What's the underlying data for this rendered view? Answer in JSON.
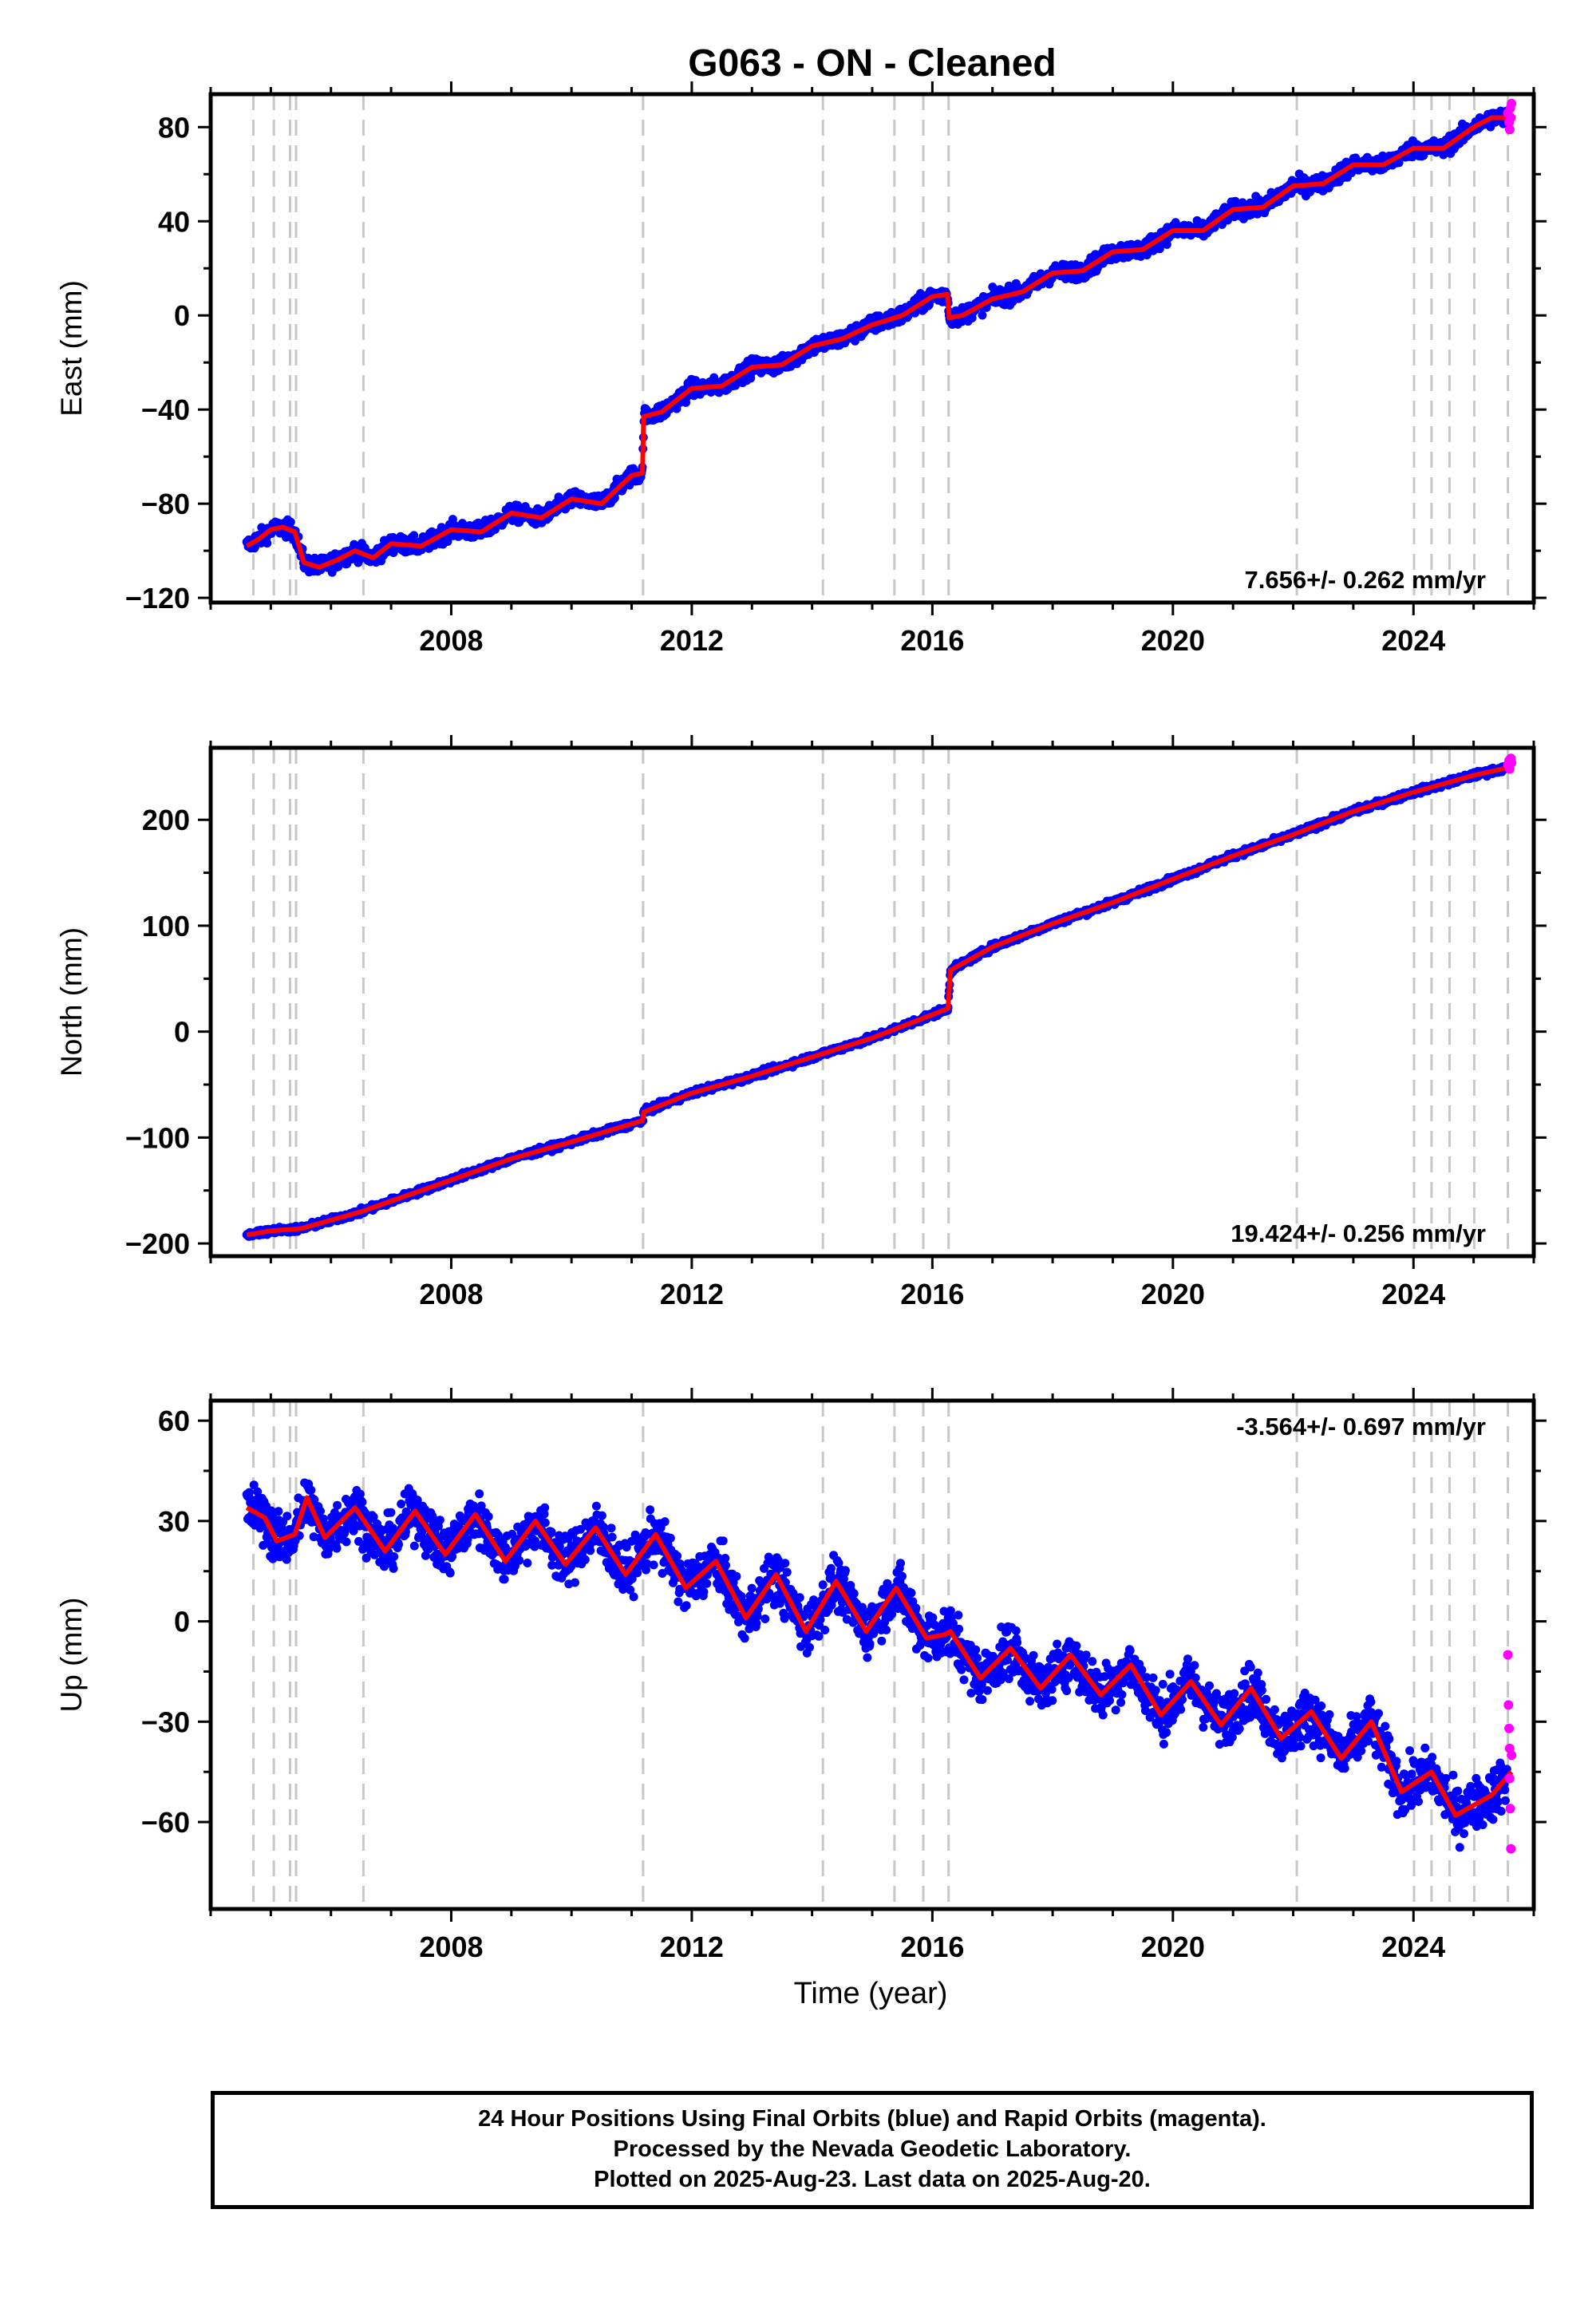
{
  "title": "G063  - ON - Cleaned",
  "colors": {
    "final": "#0000ff",
    "rapid": "#ff00ff",
    "model": "#ff0000",
    "events": "#c8c8c8",
    "frame": "#000000"
  },
  "footer": {
    "line1": "24 Hour Positions Using Final Orbits (blue) and Rapid Orbits (magenta).",
    "line2": "Processed by the Nevada Geodetic Laboratory.",
    "line3": "Plotted on 2025-Aug-23. Last data on 2025-Aug-20."
  },
  "chart_data": [
    {
      "type": "scatter",
      "ylabel": "East (mm)",
      "xlabel": "",
      "xlim": [
        2004.0,
        2026.0
      ],
      "ylim": [
        -122,
        94
      ],
      "xticks": [
        2008,
        2012,
        2016,
        2020,
        2024
      ],
      "yticks": [
        -120,
        -80,
        -40,
        0,
        40,
        80
      ],
      "rate_label": "7.656+/- 0.262 mm/yr",
      "rate_position": "bottom-right",
      "event_lines": [
        2004.71,
        2005.05,
        2005.32,
        2005.42,
        2006.54,
        2011.19,
        2014.18,
        2015.37,
        2015.85,
        2016.27,
        2022.06,
        2024.01,
        2024.3,
        2024.6,
        2025.01,
        2025.57
      ],
      "model_points": [
        [
          2004.6,
          -98
        ],
        [
          2004.8,
          -95
        ],
        [
          2005.0,
          -91
        ],
        [
          2005.2,
          -90
        ],
        [
          2005.4,
          -92
        ],
        [
          2005.55,
          -105
        ],
        [
          2005.8,
          -107
        ],
        [
          2006.1,
          -104
        ],
        [
          2006.4,
          -100
        ],
        [
          2006.7,
          -103
        ],
        [
          2007.0,
          -97
        ],
        [
          2007.5,
          -98
        ],
        [
          2008.0,
          -91
        ],
        [
          2008.5,
          -92
        ],
        [
          2009.0,
          -84
        ],
        [
          2009.5,
          -86
        ],
        [
          2010.0,
          -78
        ],
        [
          2010.5,
          -80
        ],
        [
          2011.0,
          -68
        ],
        [
          2011.18,
          -67
        ],
        [
          2011.2,
          -43
        ],
        [
          2011.5,
          -41
        ],
        [
          2012.0,
          -31
        ],
        [
          2012.5,
          -30
        ],
        [
          2013.0,
          -22
        ],
        [
          2013.5,
          -21
        ],
        [
          2014.0,
          -13
        ],
        [
          2014.5,
          -10
        ],
        [
          2015.0,
          -4
        ],
        [
          2015.5,
          0
        ],
        [
          2016.0,
          8
        ],
        [
          2016.25,
          9
        ],
        [
          2016.28,
          -1
        ],
        [
          2016.5,
          0
        ],
        [
          2017.0,
          7
        ],
        [
          2017.5,
          10
        ],
        [
          2018.0,
          18
        ],
        [
          2018.5,
          19
        ],
        [
          2019.0,
          27
        ],
        [
          2019.5,
          28
        ],
        [
          2020.0,
          36
        ],
        [
          2020.5,
          36
        ],
        [
          2021.0,
          45
        ],
        [
          2021.5,
          46
        ],
        [
          2022.0,
          55
        ],
        [
          2022.5,
          56
        ],
        [
          2023.0,
          64
        ],
        [
          2023.5,
          64
        ],
        [
          2024.0,
          71
        ],
        [
          2024.5,
          71
        ],
        [
          2025.0,
          80
        ],
        [
          2025.3,
          84
        ],
        [
          2025.63,
          84
        ]
      ],
      "noise": 3.2,
      "rapid_points": [
        [
          2025.57,
          86
        ],
        [
          2025.59,
          82
        ],
        [
          2025.6,
          79
        ],
        [
          2025.61,
          88
        ],
        [
          2025.62,
          84
        ],
        [
          2025.63,
          90
        ]
      ]
    },
    {
      "type": "scatter",
      "ylabel": "North (mm)",
      "xlabel": "",
      "xlim": [
        2004.0,
        2026.0
      ],
      "ylim": [
        -212,
        268
      ],
      "xticks": [
        2008,
        2012,
        2016,
        2020,
        2024
      ],
      "yticks": [
        -200,
        -100,
        0,
        100,
        200
      ],
      "rate_label": "19.424+/- 0.256 mm/yr",
      "rate_position": "bottom-right",
      "event_lines": [
        2004.71,
        2005.05,
        2005.32,
        2005.42,
        2006.54,
        2011.19,
        2014.18,
        2015.37,
        2015.85,
        2016.27,
        2022.06,
        2024.01,
        2024.3,
        2024.6,
        2025.01,
        2025.57
      ],
      "model_points": [
        [
          2004.6,
          -192
        ],
        [
          2005.0,
          -188
        ],
        [
          2005.5,
          -186
        ],
        [
          2006.0,
          -178
        ],
        [
          2006.5,
          -170
        ],
        [
          2007.0,
          -160
        ],
        [
          2008.0,
          -140
        ],
        [
          2009.0,
          -120
        ],
        [
          2010.0,
          -104
        ],
        [
          2011.18,
          -84
        ],
        [
          2011.2,
          -76
        ],
        [
          2012.0,
          -58
        ],
        [
          2013.0,
          -42
        ],
        [
          2014.0,
          -24
        ],
        [
          2015.0,
          -6
        ],
        [
          2016.0,
          16
        ],
        [
          2016.26,
          22
        ],
        [
          2016.3,
          58
        ],
        [
          2017.0,
          80
        ],
        [
          2018.0,
          102
        ],
        [
          2019.0,
          122
        ],
        [
          2020.0,
          144
        ],
        [
          2021.0,
          166
        ],
        [
          2022.0,
          186
        ],
        [
          2023.0,
          208
        ],
        [
          2024.0,
          226
        ],
        [
          2025.0,
          242
        ],
        [
          2025.63,
          250
        ]
      ],
      "noise": 2.6,
      "rapid_points": [
        [
          2025.57,
          252
        ],
        [
          2025.59,
          256
        ],
        [
          2025.6,
          248
        ],
        [
          2025.62,
          258
        ],
        [
          2025.63,
          254
        ]
      ]
    },
    {
      "type": "scatter",
      "ylabel": "Up (mm)",
      "xlabel": "Time (year)",
      "xlim": [
        2004.0,
        2026.0
      ],
      "ylim": [
        -86,
        66
      ],
      "xticks": [
        2008,
        2012,
        2016,
        2020,
        2024
      ],
      "yticks": [
        -60,
        -30,
        0,
        30,
        60
      ],
      "rate_label": "-3.564+/- 0.697 mm/yr",
      "rate_position": "top-right",
      "event_lines": [
        2004.71,
        2005.05,
        2005.32,
        2005.42,
        2006.54,
        2011.19,
        2014.18,
        2015.37,
        2015.85,
        2016.27,
        2022.06,
        2024.01,
        2024.3,
        2024.6,
        2025.01,
        2025.57
      ],
      "model_points": [
        [
          2004.6,
          34
        ],
        [
          2004.9,
          31
        ],
        [
          2005.1,
          24
        ],
        [
          2005.4,
          26
        ],
        [
          2005.6,
          37
        ],
        [
          2005.9,
          25
        ],
        [
          2006.4,
          34
        ],
        [
          2006.9,
          21
        ],
        [
          2007.4,
          33
        ],
        [
          2007.9,
          20
        ],
        [
          2008.4,
          32
        ],
        [
          2008.9,
          18
        ],
        [
          2009.4,
          30
        ],
        [
          2009.9,
          17
        ],
        [
          2010.4,
          28
        ],
        [
          2010.9,
          14
        ],
        [
          2011.4,
          26
        ],
        [
          2011.9,
          10
        ],
        [
          2012.4,
          18
        ],
        [
          2012.9,
          1
        ],
        [
          2013.4,
          14
        ],
        [
          2013.9,
          -3
        ],
        [
          2014.4,
          12
        ],
        [
          2014.9,
          -3
        ],
        [
          2015.4,
          10
        ],
        [
          2015.9,
          -5
        ],
        [
          2016.2,
          -4
        ],
        [
          2016.3,
          -3
        ],
        [
          2016.8,
          -17
        ],
        [
          2017.3,
          -8
        ],
        [
          2017.8,
          -20
        ],
        [
          2018.3,
          -10
        ],
        [
          2018.8,
          -22
        ],
        [
          2019.3,
          -13
        ],
        [
          2019.8,
          -28
        ],
        [
          2020.3,
          -18
        ],
        [
          2020.8,
          -31
        ],
        [
          2021.3,
          -20
        ],
        [
          2021.8,
          -35
        ],
        [
          2022.3,
          -27
        ],
        [
          2022.8,
          -41
        ],
        [
          2023.3,
          -30
        ],
        [
          2023.8,
          -51
        ],
        [
          2024.3,
          -45
        ],
        [
          2024.7,
          -58
        ],
        [
          2025.3,
          -52
        ],
        [
          2025.63,
          -45
        ]
      ],
      "noise": 7.0,
      "rapid_points": [
        [
          2025.57,
          -10
        ],
        [
          2025.58,
          -25
        ],
        [
          2025.59,
          -32
        ],
        [
          2025.6,
          -47
        ],
        [
          2025.61,
          -56
        ],
        [
          2025.62,
          -68
        ],
        [
          2025.63,
          -40
        ],
        [
          2025.6,
          -38
        ]
      ]
    }
  ]
}
